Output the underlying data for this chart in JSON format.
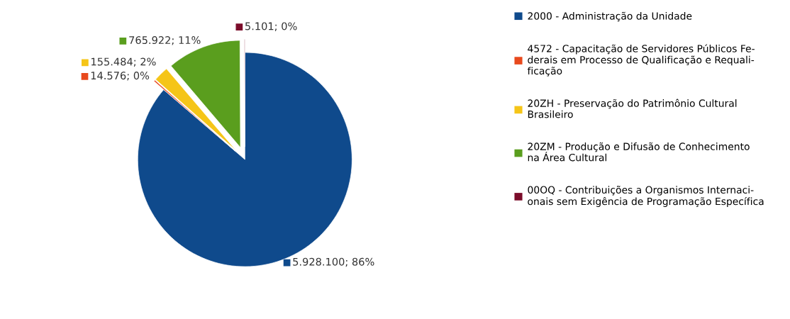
{
  "chart_data": {
    "type": "pie",
    "categories": [
      "2000 - Administração da Unidade",
      "4572 - Capacitação de Servidores Públicos Fe-\nderais em Processo de Qualificação e Requali-\nficação",
      "20ZH - Preservação do Patrimônio Cultural\nBrasileiro",
      "20ZM - Produção e Difusão de Conhecimento\nna Área Cultural",
      "00OQ - Contribuições a Organismos Internaci-\nonais sem Exigência de Programação Específica"
    ],
    "values": [
      5928100,
      14576,
      155484,
      765922,
      5101
    ],
    "value_labels": [
      "5.928.100; 86%",
      "14.576; 0%",
      "155.484; 2%",
      "765.922; 11%",
      "5.101; 0%"
    ],
    "colors": [
      "#0f4a8c",
      "#e8491d",
      "#f5c518",
      "#5a9e1e",
      "#7b0c2a"
    ],
    "legend": "right"
  }
}
